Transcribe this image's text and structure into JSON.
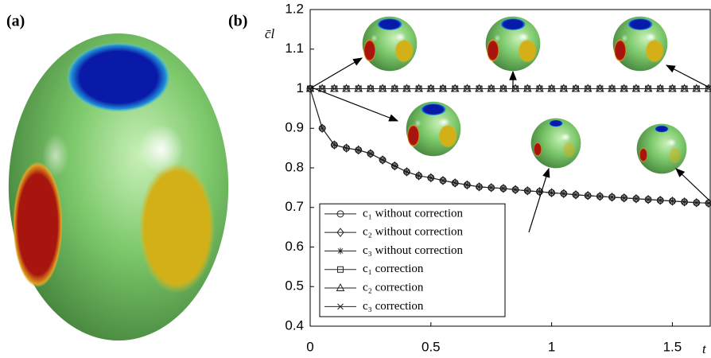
{
  "panels": [
    "(a)",
    "(b)"
  ],
  "chart_data": {
    "type": "line",
    "x_label": "t",
    "y_label": "c̄l",
    "xlim": [
      0,
      1.66
    ],
    "ylim": [
      0.4,
      1.2
    ],
    "xticks": [
      0,
      0.5,
      1,
      1.5
    ],
    "yticks": [
      0.4,
      0.5,
      0.6,
      0.7,
      0.8,
      0.9,
      1,
      1.1,
      1.2
    ],
    "legend": "lower left",
    "x": [
      0,
      0.05,
      0.1,
      0.15,
      0.2,
      0.25,
      0.3,
      0.35,
      0.4,
      0.45,
      0.5,
      0.55,
      0.6,
      0.65,
      0.7,
      0.75,
      0.8,
      0.85,
      0.9,
      0.95,
      1,
      1.05,
      1.1,
      1.15,
      1.2,
      1.25,
      1.3,
      1.35,
      1.4,
      1.45,
      1.5,
      1.55,
      1.6,
      1.65
    ],
    "series": [
      {
        "name": "c₁ without correction",
        "marker": "circle",
        "color": "#222222",
        "values": [
          1,
          0.9,
          0.858,
          0.85,
          0.845,
          0.836,
          0.82,
          0.805,
          0.79,
          0.78,
          0.775,
          0.768,
          0.762,
          0.757,
          0.752,
          0.75,
          0.748,
          0.745,
          0.742,
          0.74,
          0.737,
          0.735,
          0.732,
          0.73,
          0.728,
          0.726,
          0.724,
          0.722,
          0.72,
          0.718,
          0.716,
          0.714,
          0.712,
          0.711
        ]
      },
      {
        "name": "c₂ without correction",
        "marker": "diamond",
        "color": "#222222",
        "values": [
          1,
          0.9,
          0.858,
          0.85,
          0.845,
          0.836,
          0.82,
          0.805,
          0.79,
          0.78,
          0.775,
          0.768,
          0.762,
          0.757,
          0.752,
          0.75,
          0.748,
          0.745,
          0.742,
          0.74,
          0.737,
          0.735,
          0.732,
          0.73,
          0.728,
          0.726,
          0.724,
          0.722,
          0.72,
          0.718,
          0.716,
          0.714,
          0.712,
          0.711
        ]
      },
      {
        "name": "c₃ without correction",
        "marker": "star",
        "color": "#222222",
        "values": [
          1,
          0.9,
          0.858,
          0.85,
          0.845,
          0.836,
          0.82,
          0.805,
          0.79,
          0.78,
          0.775,
          0.768,
          0.762,
          0.757,
          0.752,
          0.75,
          0.748,
          0.745,
          0.742,
          0.74,
          0.737,
          0.735,
          0.732,
          0.73,
          0.728,
          0.726,
          0.724,
          0.722,
          0.72,
          0.718,
          0.716,
          0.714,
          0.712,
          0.711
        ]
      },
      {
        "name": "c₁ correction",
        "marker": "square",
        "color": "#222222",
        "values": [
          1,
          1,
          1,
          1,
          1,
          1,
          1,
          1,
          1,
          1,
          1,
          1,
          1,
          1,
          1,
          1,
          1,
          1,
          1,
          1,
          1,
          1,
          1,
          1,
          1,
          1,
          1,
          1,
          1,
          1,
          1,
          1,
          1,
          1
        ]
      },
      {
        "name": "c₂ correction",
        "marker": "triangle",
        "color": "#222222",
        "values": [
          1,
          1,
          1,
          1,
          1,
          1,
          1,
          1,
          1,
          1,
          1,
          1,
          1,
          1,
          1,
          1,
          1,
          1,
          1,
          1,
          1,
          1,
          1,
          1,
          1,
          1,
          1,
          1,
          1,
          1,
          1,
          1,
          1,
          1
        ]
      },
      {
        "name": "c₃ correction",
        "marker": "cross",
        "color": "#222222",
        "values": [
          1,
          1,
          1,
          1,
          1,
          1,
          1,
          1,
          1,
          1,
          1,
          1,
          1,
          1,
          1,
          1,
          1,
          1,
          1,
          1,
          1,
          1,
          1,
          1,
          1,
          1,
          1,
          1,
          1,
          1,
          1,
          1,
          1,
          1
        ]
      }
    ]
  }
}
